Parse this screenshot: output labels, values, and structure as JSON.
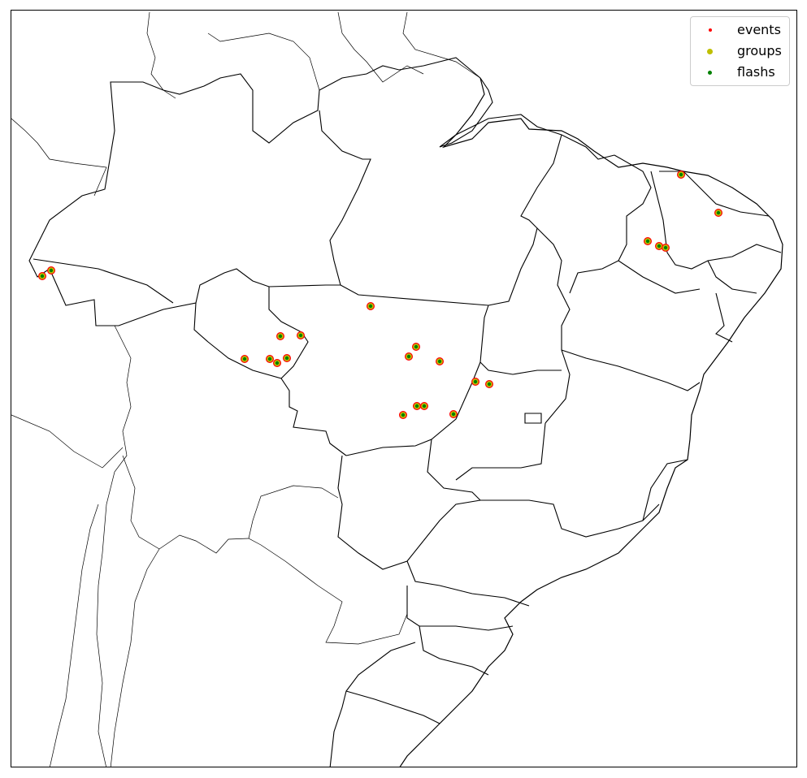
{
  "legend": {
    "items": [
      {
        "label": "events",
        "color": "#ff0000"
      },
      {
        "label": "groups",
        "color": "#bfbf00"
      },
      {
        "label": "flashs",
        "color": "#008000"
      }
    ]
  },
  "colors": {
    "events": "#ff0000",
    "groups": "#bfbf00",
    "flashs": "#008000",
    "borders": "#000000"
  }
}
